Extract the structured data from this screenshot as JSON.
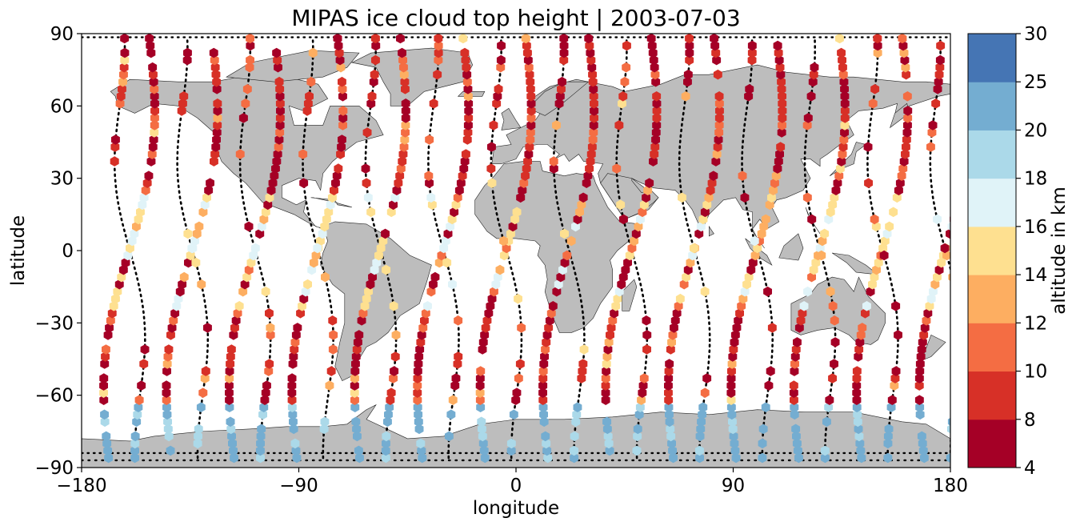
{
  "title": "MIPAS ice cloud top height | 2003-07-03",
  "x_axis": {
    "label": "longitude",
    "ticks": [
      "−180",
      "−90",
      "0",
      "90",
      "180"
    ]
  },
  "y_axis": {
    "label": "latitude",
    "ticks": [
      "90",
      "60",
      "30",
      "0",
      "−30",
      "−60",
      "−90"
    ]
  },
  "colorbar": {
    "label": "altitude in km",
    "ticks": [
      "4",
      "8",
      "10",
      "12",
      "14",
      "16",
      "18",
      "20",
      "25",
      "30"
    ],
    "colors": [
      "#a50026",
      "#d73027",
      "#f46d43",
      "#fdae61",
      "#fee090",
      "#e0f3f8",
      "#abd9e9",
      "#74add1",
      "#4575b4"
    ]
  },
  "land_color": "#bdbdbd",
  "chart_data": {
    "type": "scatter",
    "title": "MIPAS ice cloud top height | 2003-07-03",
    "xlabel": "longitude",
    "ylabel": "latitude",
    "xlim": [
      -180,
      180
    ],
    "ylim": [
      -90,
      90
    ],
    "colorbar_label": "altitude in km",
    "colorbar_bounds": [
      4,
      8,
      10,
      12,
      14,
      16,
      18,
      20,
      25,
      30
    ],
    "orbit_tracks_lon": [
      -168,
      -142,
      -116,
      -90,
      -64,
      -38,
      -12,
      14,
      40,
      66,
      92,
      118,
      144,
      170
    ],
    "note_visible": "hexagon markers colored by altitude along satellite orbit tracks; black dotted ground tracks"
  }
}
